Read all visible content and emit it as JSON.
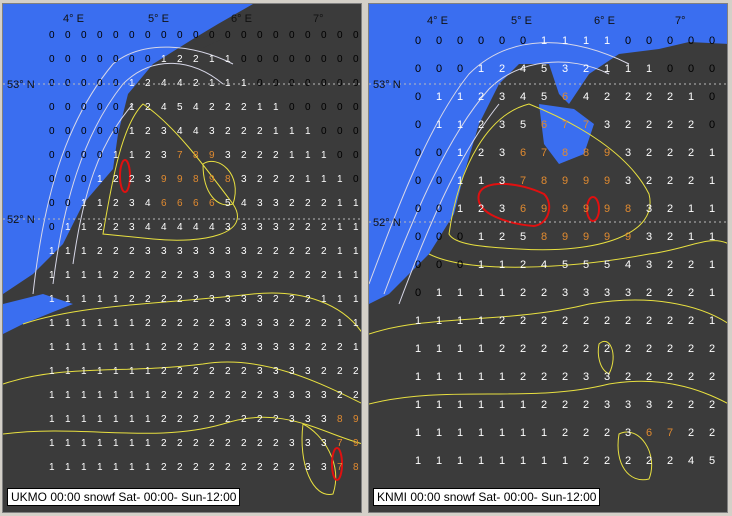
{
  "colors": {
    "sea": "#3a6ef0",
    "land": "#3b3b3b",
    "contour_yellow": "#e8e040",
    "contour_white": "#d8d8e8",
    "high": "#e08a30",
    "peak": "#e01010",
    "digit_low": "#ffffff",
    "digit_zero": "#000000"
  },
  "panels": [
    {
      "caption": "UKMO 00:00 snowf Sat- 00:00- Sun-12:00",
      "lon_labels": [
        "4° E",
        "5° E",
        "6° E",
        "7°"
      ],
      "lat_labels": [
        "53° N",
        "52° N"
      ],
      "grid": [
        "00000000000000000000",
        "00000001221100000000",
        "00000124421110000000",
        "00000124542221100000",
        "00000123443222111000",
        "00001123789322211100",
        "00012239989832221110",
        "00112346666543322211",
        "01122344444333322211",
        "11122233333332222211",
        "11112222233332222211",
        "11111222223333222111",
        "11111122222333322211",
        "11111112222233332221",
        "11111112222223333222",
        "11111112222222333322",
        "11111112222222233389",
        "11111112222222233379",
        "11111112222222223378"
      ]
    },
    {
      "caption": "KNMI 00:00 snowf Sat- 00:00- Sun-12:00",
      "lon_labels": [
        "4° E",
        "5° E",
        "6° E",
        "7°"
      ],
      "lat_labels": [
        "53° N",
        "52° N"
      ],
      "grid": [
        "000000111100000",
        "000124532111000",
        "011234564222210",
        "011235677322220",
        "001236788932221",
        "001137899932221",
        "001236999983211",
        "000125899993211",
        "000112455543221",
        "011112233332221",
        "111122222222221",
        "111122222222222",
        "111112223322222",
        "111111222333222",
        "111111122236722",
        "111111112222245"
      ]
    }
  ]
}
